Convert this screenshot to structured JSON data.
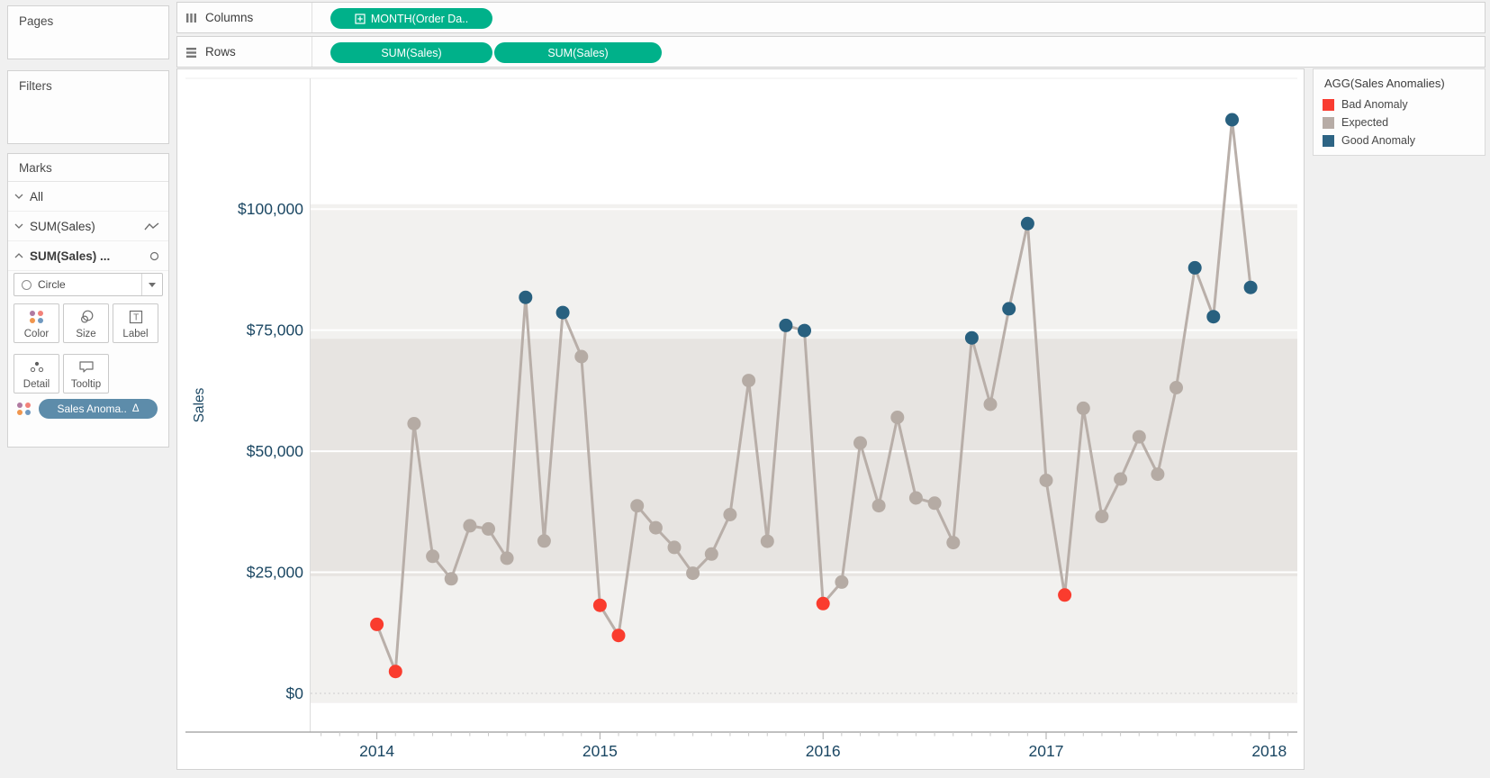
{
  "pages_panel": {
    "label": "Pages"
  },
  "filters_panel": {
    "label": "Filters"
  },
  "marks_panel": {
    "label": "Marks",
    "rows": [
      {
        "label": "All"
      },
      {
        "label": "SUM(Sales)",
        "mark": "line"
      },
      {
        "label": "SUM(Sales) ...",
        "mark": "circle"
      }
    ],
    "mark_type_dropdown": {
      "value": "Circle"
    },
    "buttons": [
      "Color",
      "Size",
      "Label",
      "Detail",
      "Tooltip"
    ],
    "encoding_pill": {
      "label": "Sales Anoma..",
      "delta": "Δ",
      "color": "#5d8caa"
    }
  },
  "shelves": {
    "columns": {
      "label": "Columns",
      "pills": [
        {
          "label": "MONTH(Order Da..",
          "color": "#00b18a"
        }
      ]
    },
    "rows": {
      "label": "Rows",
      "pills": [
        {
          "label": "SUM(Sales)",
          "color": "#00b18a"
        },
        {
          "label": "SUM(Sales)",
          "color": "#00b18a"
        }
      ]
    }
  },
  "legend": {
    "title": "AGG(Sales Anomalies)",
    "entries": [
      {
        "label": "Bad Anomaly",
        "color": "#f93c31"
      },
      {
        "label": "Expected",
        "color": "#b7aca6"
      },
      {
        "label": "Good Anomaly",
        "color": "#2d6484"
      }
    ]
  },
  "chart_data": {
    "type": "line",
    "ylabel": "Sales",
    "x": [
      "2014-01",
      "2014-02",
      "2014-03",
      "2014-04",
      "2014-05",
      "2014-06",
      "2014-07",
      "2014-08",
      "2014-09",
      "2014-10",
      "2014-11",
      "2014-12",
      "2015-01",
      "2015-02",
      "2015-03",
      "2015-04",
      "2015-05",
      "2015-06",
      "2015-07",
      "2015-08",
      "2015-09",
      "2015-10",
      "2015-11",
      "2015-12",
      "2016-01",
      "2016-02",
      "2016-03",
      "2016-04",
      "2016-05",
      "2016-06",
      "2016-07",
      "2016-08",
      "2016-09",
      "2016-10",
      "2016-11",
      "2016-12",
      "2017-01",
      "2017-02",
      "2017-03",
      "2017-04",
      "2017-05",
      "2017-06",
      "2017-07",
      "2017-08",
      "2017-09",
      "2017-10",
      "2017-11",
      "2017-12"
    ],
    "series": [
      {
        "name": "SUM(Sales)",
        "values": [
          14237,
          4520,
          55691,
          28295,
          23648,
          34595,
          33946,
          27909,
          81777,
          31453,
          78629,
          69545,
          18174,
          11951,
          38726,
          34195,
          30131,
          24797,
          28765,
          36898,
          64595,
          31404,
          75973,
          74920,
          18542,
          22978,
          51716,
          38750,
          56988,
          40344,
          39262,
          31115,
          73410,
          59687,
          79412,
          96999,
          43971,
          20301,
          58872,
          36522,
          44261,
          52982,
          45264,
          63121,
          87867,
          77776,
          118448,
          83829
        ]
      }
    ],
    "point_anomaly": [
      "bad",
      "bad",
      "expected",
      "expected",
      "expected",
      "expected",
      "expected",
      "expected",
      "good",
      "expected",
      "good",
      "expected",
      "bad",
      "bad",
      "expected",
      "expected",
      "expected",
      "expected",
      "expected",
      "expected",
      "expected",
      "expected",
      "good",
      "good",
      "bad",
      "expected",
      "expected",
      "expected",
      "expected",
      "expected",
      "expected",
      "expected",
      "good",
      "expected",
      "good",
      "good",
      "expected",
      "bad",
      "expected",
      "expected",
      "expected",
      "expected",
      "expected",
      "expected",
      "good",
      "good",
      "good",
      "good"
    ],
    "anomaly_colors": {
      "bad": "#fa3c2e",
      "expected": "#b5aba4",
      "good": "#28607f"
    },
    "line_color": "#b5aba4",
    "ylim": [
      -8000,
      127000
    ],
    "y_ticks": [
      {
        "value": 0,
        "label": "$0"
      },
      {
        "value": 25000,
        "label": "$25,000"
      },
      {
        "value": 50000,
        "label": "$50,000"
      },
      {
        "value": 75000,
        "label": "$75,000"
      },
      {
        "value": 100000,
        "label": "$100,000"
      }
    ],
    "x_tick_years": [
      "2014",
      "2015",
      "2016",
      "2017",
      "2018"
    ],
    "reference_bands": {
      "outer": {
        "from": -2000,
        "to": 101000,
        "color": "#f2f1ef"
      },
      "inner": {
        "from": 24200,
        "to": 73200,
        "color": "#e7e4e1"
      }
    },
    "zero_line": {
      "value": 0,
      "style": "dotted"
    },
    "axis_text_color": "#1b4763",
    "grid": true,
    "legend_position": "right"
  }
}
